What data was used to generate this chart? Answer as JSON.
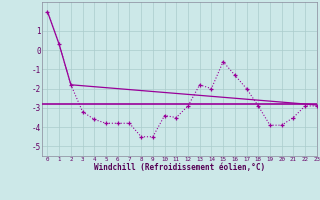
{
  "x": [
    0,
    1,
    2,
    3,
    4,
    5,
    6,
    7,
    8,
    9,
    10,
    11,
    12,
    13,
    14,
    15,
    16,
    17,
    18,
    19,
    20,
    21,
    22,
    23
  ],
  "y_zigzag": [
    2.0,
    0.3,
    -1.8,
    -3.2,
    -3.6,
    -3.8,
    -3.8,
    -3.8,
    -4.5,
    -4.5,
    -3.4,
    -3.5,
    -2.9,
    -1.8,
    -2.0,
    -0.6,
    -1.3,
    -2.0,
    -2.9,
    -3.9,
    -3.9,
    -3.5,
    -2.9,
    -2.9
  ],
  "y_line": [
    2.0,
    0.3,
    -1.8,
    -1.85,
    -1.9,
    -1.95,
    -2.0,
    -2.05,
    -2.1,
    -2.15,
    -2.2,
    -2.25,
    -2.3,
    -2.35,
    -2.4,
    -2.45,
    -2.5,
    -2.55,
    -2.6,
    -2.65,
    -2.7,
    -2.75,
    -2.8,
    -2.85
  ],
  "y_flat": -2.8,
  "background_color": "#cce8e8",
  "line_color": "#990099",
  "grid_color": "#aacccc",
  "xlabel": "Windchill (Refroidissement éolien,°C)",
  "ylim": [
    -5.5,
    2.5
  ],
  "xlim": [
    -0.5,
    23
  ],
  "yticks": [
    1,
    0,
    -1,
    -2,
    -3,
    -4,
    -5
  ],
  "xticks": [
    0,
    1,
    2,
    3,
    4,
    5,
    6,
    7,
    8,
    9,
    10,
    11,
    12,
    13,
    14,
    15,
    16,
    17,
    18,
    19,
    20,
    21,
    22,
    23
  ]
}
